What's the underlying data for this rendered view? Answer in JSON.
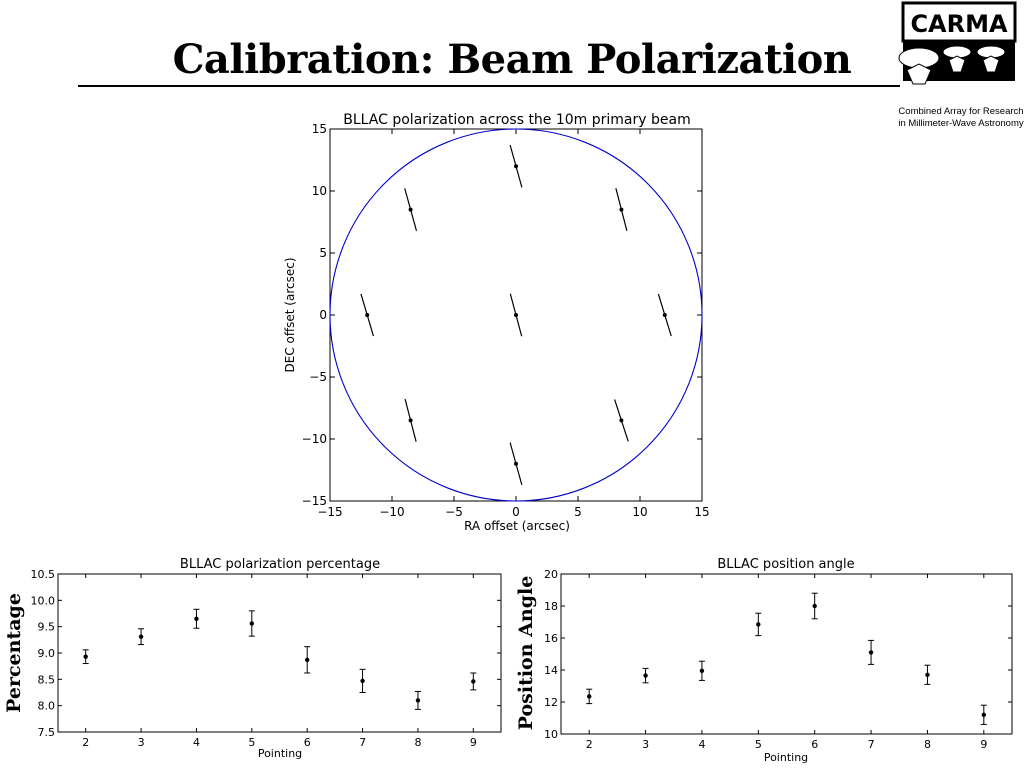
{
  "slide": {
    "title": "Calibration: Beam Polarization"
  },
  "logo": {
    "text": "CARMA",
    "tagline_line1": "Combined Array for Research",
    "tagline_line2": "in Millimeter-Wave Astronomy"
  },
  "colors": {
    "circle": "#0000cc",
    "marker": "#000000"
  },
  "chart_data": [
    {
      "type": "scatter",
      "title": "BLLAC polarization across the 10m primary beam",
      "xlabel": "RA offset (arcsec)",
      "ylabel": "DEC offset (arcsec)",
      "xlim": [
        -15,
        15
      ],
      "ylim": [
        -15,
        15
      ],
      "xticks": [
        "−15",
        "−10",
        "−5",
        "0",
        "5",
        "10",
        "15"
      ],
      "yticks": [
        "−15",
        "−10",
        "−5",
        "0",
        "5",
        "10",
        "15"
      ],
      "circle_radius": 15,
      "points": [
        {
          "x": 0,
          "y": 0,
          "pa": 15.0
        },
        {
          "x": 0,
          "y": 12,
          "pa": 15.5
        },
        {
          "x": 8.5,
          "y": 8.5,
          "pa": 14.5
        },
        {
          "x": 12,
          "y": 0,
          "pa": 17.0
        },
        {
          "x": 8.5,
          "y": -8.5,
          "pa": 18.0
        },
        {
          "x": 0,
          "y": -12,
          "pa": 15.5
        },
        {
          "x": -8.5,
          "y": -8.5,
          "pa": 14.5
        },
        {
          "x": -12,
          "y": 0,
          "pa": 16.5
        },
        {
          "x": -8.5,
          "y": 8.5,
          "pa": 15.5
        }
      ]
    },
    {
      "type": "scatter",
      "title": "BLLAC polarization percentage",
      "xlabel": "Pointing",
      "ylabel": "Percentage",
      "xlim": [
        1.5,
        9.5
      ],
      "ylim": [
        7.5,
        10.5
      ],
      "xticks": [
        "2",
        "3",
        "4",
        "5",
        "6",
        "7",
        "8",
        "9"
      ],
      "yticks": [
        "7.5",
        "8.0",
        "8.5",
        "9.0",
        "9.5",
        "10.0",
        "10.5"
      ],
      "x": [
        2,
        3,
        4,
        5,
        6,
        7,
        8,
        9
      ],
      "y": [
        8.93,
        9.31,
        9.65,
        9.56,
        8.87,
        8.47,
        8.1,
        8.46
      ],
      "yerr": [
        0.13,
        0.15,
        0.18,
        0.24,
        0.25,
        0.22,
        0.17,
        0.16
      ]
    },
    {
      "type": "scatter",
      "title": "BLLAC position angle",
      "xlabel": "Pointing",
      "ylabel": "Position Angle",
      "xlim": [
        1.5,
        9.5
      ],
      "ylim": [
        10,
        20
      ],
      "xticks": [
        "2",
        "3",
        "4",
        "5",
        "6",
        "7",
        "8",
        "9"
      ],
      "yticks": [
        "10",
        "12",
        "14",
        "16",
        "18",
        "20"
      ],
      "x": [
        2,
        3,
        4,
        5,
        6,
        7,
        8,
        9
      ],
      "y": [
        12.35,
        13.65,
        13.95,
        16.85,
        18.0,
        15.1,
        13.7,
        11.2
      ],
      "yerr": [
        0.45,
        0.45,
        0.6,
        0.7,
        0.8,
        0.75,
        0.6,
        0.6
      ]
    }
  ]
}
